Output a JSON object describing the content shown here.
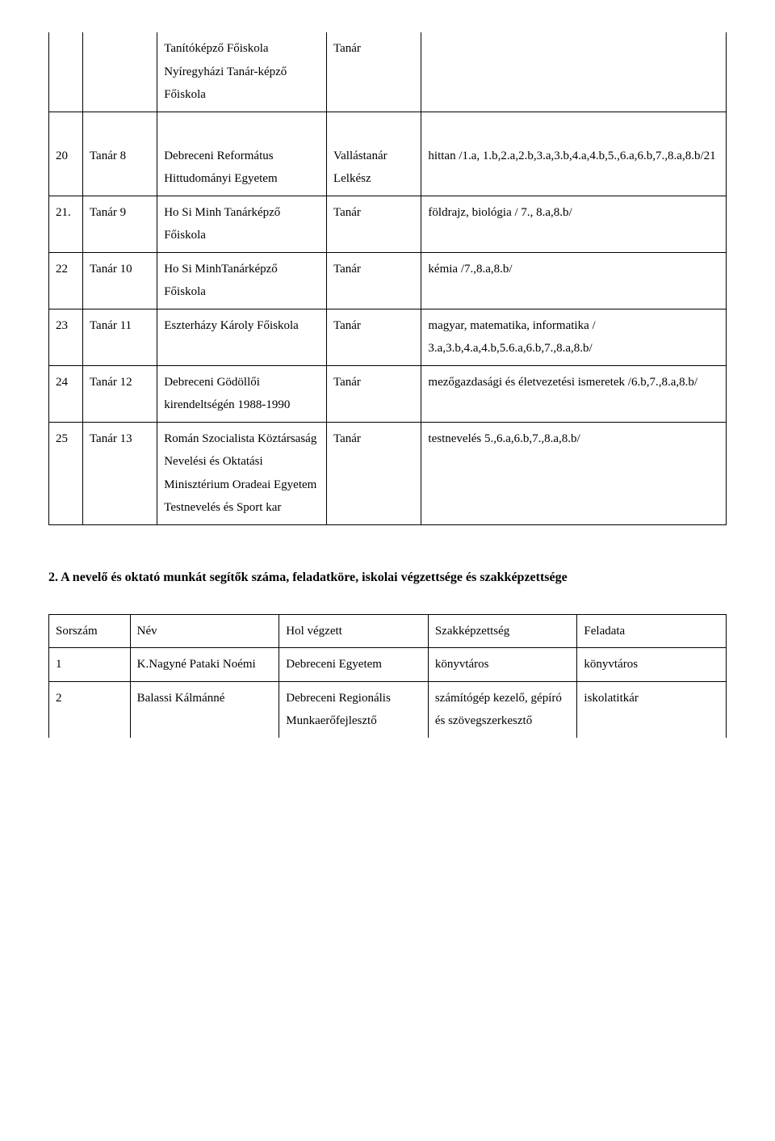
{
  "table1": {
    "headRowCells": [
      "",
      "",
      "Tanítóképző Főiskola Nyíregyházi Tanár-képző Főiskola",
      "Tanár",
      ""
    ],
    "rows": [
      {
        "c0": "20",
        "c1": "Tanár 8",
        "c2": "Debreceni Református Hittudományi Egyetem",
        "c3": "Vallástanár Lelkész",
        "c4": "hittan /1.a, 1.b,2.a,2.b,3.a,3.b,4.a,4.b,5.,6.a,6.b,7.,8.a,8.b/21"
      },
      {
        "c0": "21.",
        "c1": "Tanár 9",
        "c2": "Ho Si Minh Tanárképző Főiskola",
        "c3": "Tanár",
        "c4": "földrajz, biológia / 7., 8.a,8.b/"
      },
      {
        "c0": "22",
        "c1": "Tanár 10",
        "c2": "Ho Si MinhTanárképző Főiskola",
        "c3": "Tanár",
        "c4": "kémia /7.,8.a,8.b/"
      },
      {
        "c0": "23",
        "c1": "Tanár 11",
        "c2": "Eszterházy Károly Főiskola",
        "c3": "Tanár",
        "c4": "magyar, matematika, informatika / 3.a,3.b,4.a,4.b,5.6.a,6.b,7.,8.a,8.b/"
      },
      {
        "c0": "24",
        "c1": "Tanár 12",
        "c2": "Debreceni Gödöllői kirendeltségén 1988-1990",
        "c3": "Tanár",
        "c4": "mezőgazdasági és életvezetési ismeretek /6.b,7.,8.a,8.b/"
      },
      {
        "c0": "25",
        "c1": "Tanár 13",
        "c2": "Román Szocialista Köztársaság Nevelési és Oktatási Minisztérium Oradeai Egyetem Testnevelés és Sport kar",
        "c3": "Tanár",
        "c4": "testnevelés 5.,6.a,6.b,7.,8.a,8.b/"
      }
    ]
  },
  "sectionHeading": "2. A nevelő és oktató munkát segítők száma, feladatköre, iskolai végzettsége és szakképzettsége",
  "table2": {
    "headers": [
      "Sorszám",
      "Név",
      "Hol végzett",
      "Szakképzettség",
      "Feladata"
    ],
    "rows": [
      {
        "c0": "1",
        "c1": "K.Nagyné Pataki Noémi",
        "c2": "Debreceni Egyetem",
        "c3": "könyvtáros",
        "c4": "könyvtáros"
      },
      {
        "c0": "2",
        "c1": "Balassi Kálmánné",
        "c2": "Debreceni Regionális Munkaerőfejlesztő",
        "c3": "számítógép kezelő, gépíró és szövegszerkesztő",
        "c4": "iskolatitkár"
      }
    ]
  }
}
